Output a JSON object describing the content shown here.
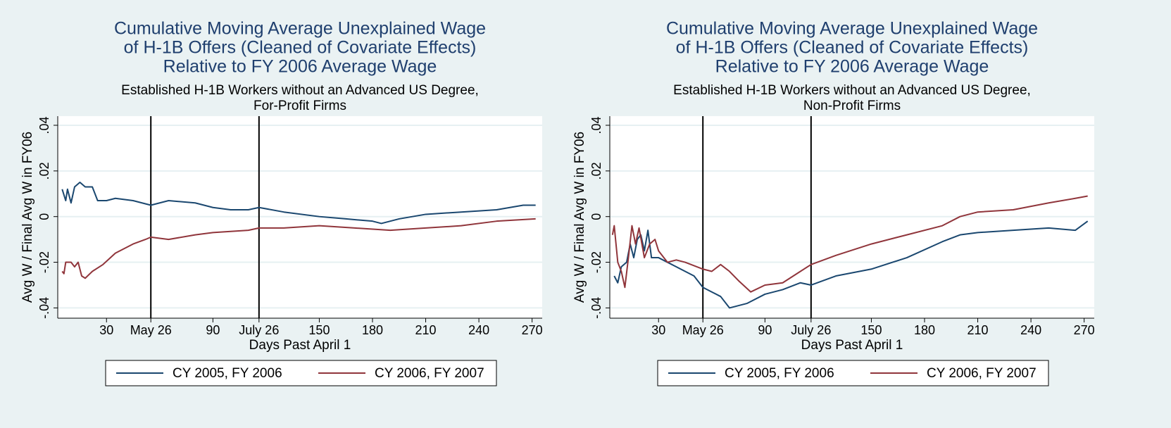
{
  "chart_data": [
    {
      "type": "line",
      "title": [
        "Cumulative Moving Average Unexplained Wage",
        "of H-1B Offers (Cleaned of Covariate Effects)",
        "Relative to FY 2006 Average Wage"
      ],
      "subtitle": [
        "Established H-1B Workers without an Advanced US Degree,",
        "For-Profit Firms"
      ],
      "x_label": "Days Past April 1",
      "y_label": "Avg W / Final Avg W in FY06",
      "xlim": [
        2.5,
        275.7
      ],
      "ylim": [
        -0.0445,
        0.044
      ],
      "xticks": [
        30,
        {
          "value": 55,
          "label": "May 26"
        },
        90,
        {
          "value": 116,
          "label": "July 26"
        },
        150,
        180,
        210,
        240,
        270
      ],
      "yticks": [
        {
          "value": -0.04,
          "label": "-.04"
        },
        {
          "value": -0.02,
          "label": "-.02"
        },
        0,
        {
          "value": 0.02,
          "label": ".02"
        },
        {
          "value": 0.04,
          "label": ".04"
        }
      ],
      "grid": true,
      "reference_lines": [
        55,
        116
      ],
      "series": [
        {
          "name": "CY 2005, FY 2006",
          "color": "#1a476f",
          "x": [
            5,
            7,
            8,
            10,
            12,
            15,
            18,
            22,
            25,
            30,
            35,
            45,
            55,
            60,
            65,
            80,
            90,
            100,
            110,
            116,
            130,
            150,
            165,
            180,
            185,
            195,
            210,
            230,
            250,
            265,
            272
          ],
          "values": [
            0.012,
            0.007,
            0.012,
            0.006,
            0.013,
            0.015,
            0.013,
            0.013,
            0.007,
            0.007,
            0.008,
            0.007,
            0.005,
            0.006,
            0.007,
            0.006,
            0.004,
            0.003,
            0.003,
            0.004,
            0.002,
            0.0,
            -0.001,
            -0.002,
            -0.003,
            -0.001,
            0.001,
            0.002,
            0.003,
            0.005,
            0.005
          ]
        },
        {
          "name": "CY 2006, FY 2007",
          "color": "#90353b",
          "x": [
            5,
            6,
            7,
            10,
            12,
            14,
            16,
            18,
            22,
            28,
            35,
            45,
            52,
            55,
            65,
            80,
            90,
            110,
            116,
            130,
            150,
            170,
            190,
            210,
            230,
            250,
            272
          ],
          "values": [
            -0.024,
            -0.025,
            -0.02,
            -0.02,
            -0.022,
            -0.02,
            -0.026,
            -0.027,
            -0.024,
            -0.021,
            -0.016,
            -0.012,
            -0.01,
            -0.009,
            -0.01,
            -0.008,
            -0.007,
            -0.006,
            -0.005,
            -0.005,
            -0.004,
            -0.005,
            -0.006,
            -0.005,
            -0.004,
            -0.002,
            -0.001
          ]
        }
      ]
    },
    {
      "type": "line",
      "title": [
        "Cumulative Moving Average Unexplained Wage",
        "of H-1B Offers (Cleaned of Covariate Effects)",
        "Relative to FY 2006 Average Wage"
      ],
      "subtitle": [
        "Established H-1B Workers without an Advanced US Degree,",
        "Non-Profit Firms"
      ],
      "x_label": "Days Past April 1",
      "y_label": "Avg W / Final Avg W in FY06",
      "xlim": [
        2.5,
        275.7
      ],
      "ylim": [
        -0.0445,
        0.044
      ],
      "xticks": [
        30,
        {
          "value": 55,
          "label": "May 26"
        },
        90,
        {
          "value": 116,
          "label": "July 26"
        },
        150,
        180,
        210,
        240,
        270
      ],
      "yticks": [
        {
          "value": -0.04,
          "label": "-.04"
        },
        {
          "value": -0.02,
          "label": "-.02"
        },
        0,
        {
          "value": 0.02,
          "label": ".02"
        },
        {
          "value": 0.04,
          "label": ".04"
        }
      ],
      "grid": true,
      "reference_lines": [
        55,
        116
      ],
      "series": [
        {
          "name": "CY 2005, FY 2006",
          "color": "#1a476f",
          "x": [
            5,
            7,
            9,
            12,
            14,
            16,
            18,
            20,
            22,
            24,
            26,
            30,
            35,
            40,
            45,
            50,
            55,
            60,
            65,
            70,
            80,
            90,
            100,
            110,
            116,
            130,
            150,
            170,
            190,
            200,
            210,
            230,
            250,
            265,
            272
          ],
          "values": [
            -0.026,
            -0.029,
            -0.022,
            -0.02,
            -0.012,
            -0.018,
            -0.01,
            -0.008,
            -0.015,
            -0.006,
            -0.018,
            -0.018,
            -0.02,
            -0.022,
            -0.024,
            -0.026,
            -0.031,
            -0.033,
            -0.035,
            -0.04,
            -0.038,
            -0.034,
            -0.032,
            -0.029,
            -0.03,
            -0.026,
            -0.023,
            -0.018,
            -0.011,
            -0.008,
            -0.007,
            -0.006,
            -0.005,
            -0.006,
            -0.002
          ]
        },
        {
          "name": "CY 2006, FY 2007",
          "color": "#90353b",
          "x": [
            4,
            5,
            7,
            9,
            11,
            13,
            15,
            17,
            19,
            22,
            25,
            28,
            30,
            35,
            40,
            45,
            55,
            60,
            65,
            70,
            75,
            82,
            90,
            100,
            110,
            116,
            130,
            150,
            170,
            190,
            200,
            210,
            230,
            250,
            265,
            272
          ],
          "values": [
            -0.008,
            -0.004,
            -0.02,
            -0.024,
            -0.031,
            -0.018,
            -0.004,
            -0.012,
            -0.005,
            -0.018,
            -0.012,
            -0.01,
            -0.015,
            -0.02,
            -0.019,
            -0.02,
            -0.023,
            -0.024,
            -0.021,
            -0.024,
            -0.028,
            -0.033,
            -0.03,
            -0.029,
            -0.024,
            -0.021,
            -0.017,
            -0.012,
            -0.008,
            -0.004,
            0.0,
            0.002,
            0.003,
            0.006,
            0.008,
            0.009
          ]
        }
      ]
    }
  ]
}
